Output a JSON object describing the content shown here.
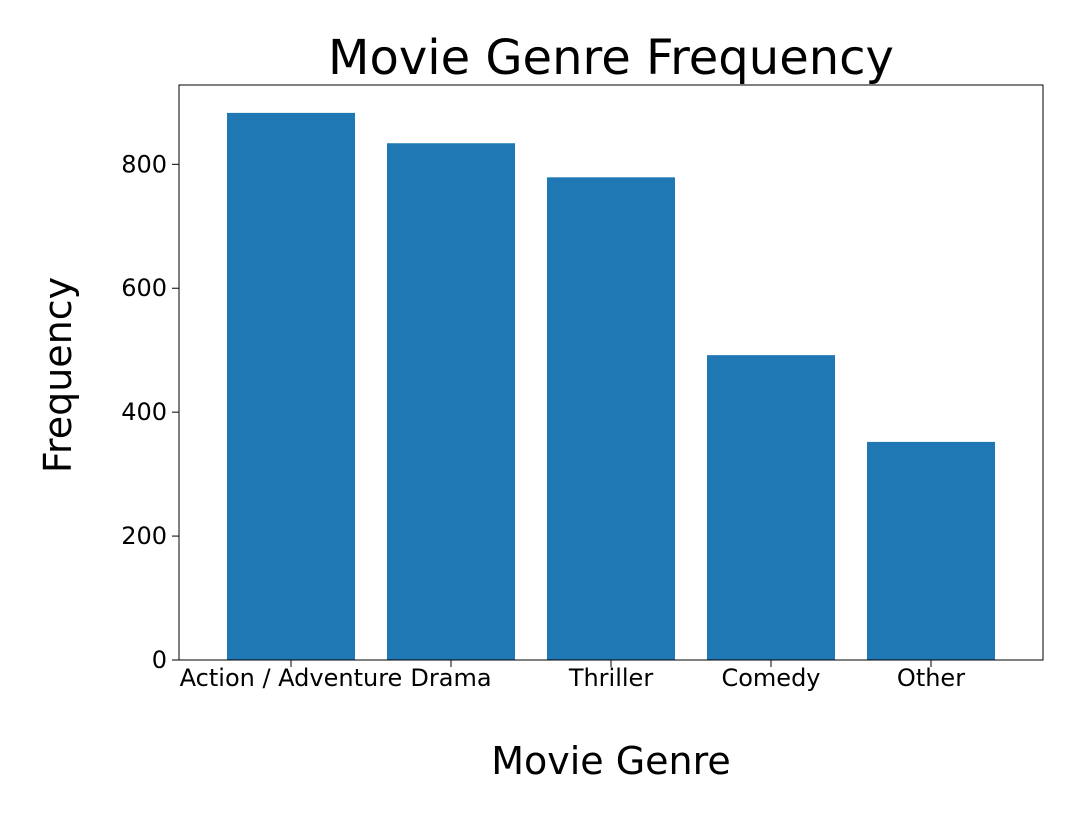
{
  "chart_data": {
    "type": "bar",
    "title": "Movie Genre Frequency",
    "xlabel": "Movie Genre",
    "ylabel": "Frequency",
    "categories": [
      "Action / Adventure",
      "Drama",
      "Thriller",
      "Comedy",
      "Other"
    ],
    "values": [
      883,
      834,
      779,
      492,
      352
    ],
    "ylim": [
      0,
      928
    ],
    "yticks": [
      0,
      200,
      400,
      600,
      800
    ],
    "bar_color": "#1f77b4",
    "grid": false,
    "legend": "none"
  }
}
